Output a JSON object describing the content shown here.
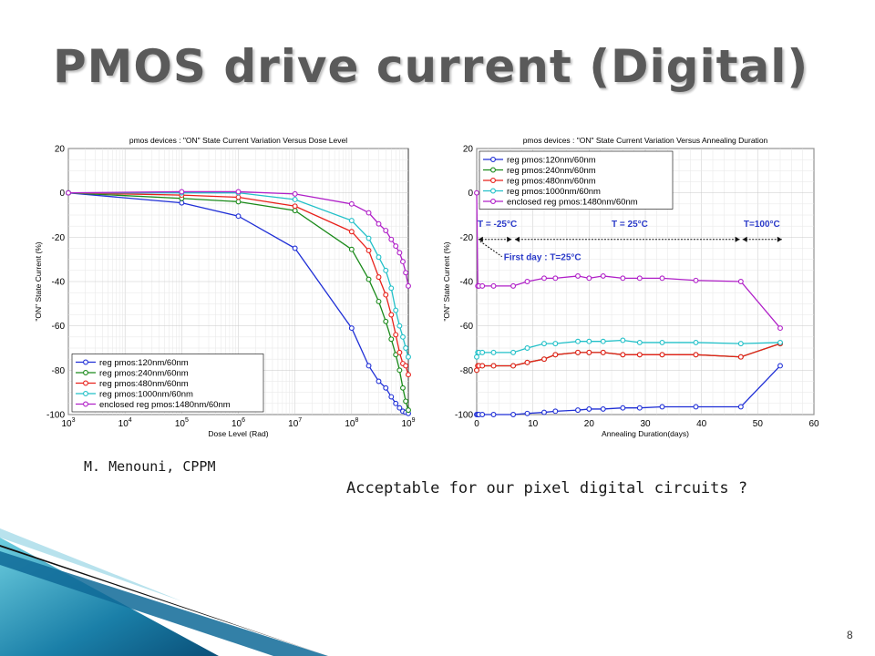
{
  "title": "PMOS drive current (Digital)",
  "author": "M. Menouni, CPPM",
  "question": "Acceptable for our pixel digital circuits ?",
  "page_number": "8",
  "colors": {
    "blue": "#1f2fd6",
    "green": "#1a8a1a",
    "red": "#e8201a",
    "cyan": "#22c0c8",
    "purple": "#b020c8",
    "annot": "#2a3ac8",
    "title": "#5a5a5a"
  },
  "chart_data": [
    {
      "type": "line",
      "title": "pmos devices : \"ON\" State Current Variation Versus Dose Level",
      "xlabel": "Dose Level (Rad)",
      "ylabel": "\"ON\" State Current (%)",
      "xscale": "log",
      "xlim": [
        1000,
        1000000000
      ],
      "ylim": [
        -100,
        20
      ],
      "xticks": [
        "10^3",
        "10^4",
        "10^5",
        "10^6",
        "10^7",
        "10^8",
        "10^9"
      ],
      "yticks": [
        "20",
        "0",
        "-20",
        "-40",
        "-60",
        "-80",
        "-100"
      ],
      "grid": true,
      "legend": "bottom-left",
      "x": [
        1000,
        100000,
        1000000,
        10000000,
        100000000,
        200000000,
        300000000,
        400000000,
        500000000,
        600000000,
        700000000,
        800000000,
        900000000,
        1000000000
      ],
      "series": [
        {
          "name": "reg pmos:120nm/60nm",
          "color": "blue",
          "values": [
            0,
            -4.5,
            -10.5,
            -25,
            -61,
            -78,
            -85,
            -88,
            -92,
            -95,
            -97,
            -98.5,
            -99,
            -99.5
          ]
        },
        {
          "name": "reg pmos:240nm/60nm",
          "color": "green",
          "values": [
            0,
            -2.5,
            -4,
            -8,
            -25.5,
            -39,
            -49,
            -58,
            -66,
            -73,
            -80,
            -88,
            -94,
            -98
          ]
        },
        {
          "name": "reg pmos:480nm/60nm",
          "color": "red",
          "values": [
            0,
            -1,
            -2,
            -6,
            -17.5,
            -26,
            -38,
            -46,
            -55,
            -64,
            -72,
            -77,
            -78,
            -82
          ]
        },
        {
          "name": "reg pmos:1000nm/60nm",
          "color": "cyan",
          "values": [
            0,
            0,
            0,
            -3,
            -12.5,
            -20.5,
            -29,
            -35,
            -43,
            -53,
            -60,
            -65,
            -70,
            -74
          ]
        },
        {
          "name": "enclosed reg pmos:1480nm/60nm",
          "color": "purple",
          "values": [
            0,
            0.5,
            0.5,
            -0.5,
            -5,
            -9,
            -14,
            -17,
            -21,
            -24,
            -27,
            -31,
            -36,
            -42
          ]
        }
      ]
    },
    {
      "type": "line",
      "title": "pmos devices : \"ON\" State Current Variation Versus Annealing Duration",
      "xlabel": "Annealing Duration(days)",
      "ylabel": "\"ON\" State Current (%)",
      "xlim": [
        0,
        60
      ],
      "ylim": [
        -100,
        20
      ],
      "xticks": [
        "0",
        "10",
        "20",
        "30",
        "40",
        "50",
        "60"
      ],
      "yticks": [
        "20",
        "0",
        "-20",
        "-40",
        "-60",
        "-80",
        "-100"
      ],
      "grid": true,
      "legend": "top-left",
      "annotations": [
        "T = -25°C",
        "T = 25°C",
        "T=100°C",
        "First day : T=25°C"
      ],
      "x": [
        0,
        0.2,
        0.4,
        1,
        3,
        6.5,
        9,
        12,
        14,
        18,
        20,
        22.5,
        26,
        29,
        33,
        39,
        47,
        54
      ],
      "series": [
        {
          "name": "reg pmos:120nm/60nm",
          "color": "blue",
          "values": [
            -100,
            -100,
            -100,
            -100,
            -100,
            -100,
            -99.5,
            -99,
            -98.5,
            -98,
            -97.5,
            -97.5,
            -97,
            -97,
            -96.5,
            -96.5,
            -96.5,
            -78
          ]
        },
        {
          "name": "reg pmos:240nm/60nm",
          "color": "green",
          "values": [
            -80,
            -78,
            -78,
            -78,
            -78,
            -78,
            -76.5,
            -75,
            -73,
            -72,
            -72,
            -72,
            -73,
            -73,
            -73,
            -73,
            -74,
            -68
          ]
        },
        {
          "name": "reg pmos:480nm/60nm",
          "color": "red",
          "values": [
            -80,
            -78,
            -78,
            -78,
            -78,
            -78,
            -76.5,
            -75,
            -73,
            -72,
            -72,
            -72,
            -73,
            -73,
            -73,
            -73,
            -74,
            -68
          ]
        },
        {
          "name": "reg pmos:1000nm/60nm",
          "color": "cyan",
          "values": [
            -74,
            -72,
            -72,
            -72,
            -72,
            -72,
            -70,
            -68,
            -68,
            -67,
            -67,
            -67,
            -66.5,
            -67.5,
            -67.5,
            -67.5,
            -68,
            -67.5
          ]
        },
        {
          "name": "enclosed reg pmos:1480nm/60nm",
          "color": "purple",
          "values": [
            0,
            -42,
            -42,
            -42,
            -42,
            -42,
            -40,
            -38.5,
            -38.5,
            -37.5,
            -38.5,
            -37.5,
            -38.5,
            -38.5,
            -38.5,
            -39.5,
            -40,
            -61
          ]
        }
      ]
    }
  ]
}
